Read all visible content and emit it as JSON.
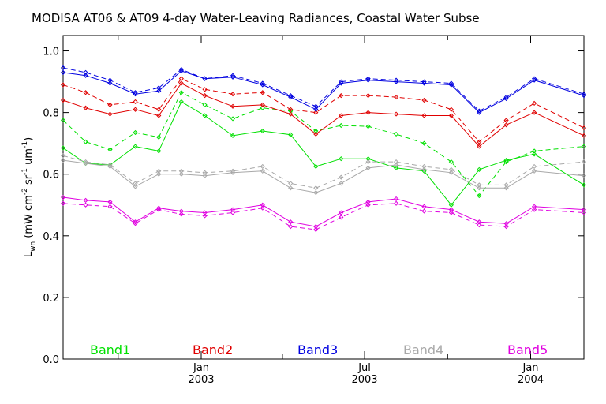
{
  "chart_data": {
    "type": "line",
    "title": "MODISA AT06 & AT09 4-day Water-Leaving Radiances, Coastal Water Subse",
    "ylabel": {
      "main": "L",
      "sub": "wn",
      "unit_open": " (mW cm",
      "sup1": "-2",
      "mid1": " sr",
      "sup2": "-1",
      "mid2": " um",
      "sup3": "-1",
      "close": ")"
    },
    "ylim": [
      0.0,
      1.05
    ],
    "yticks": [
      {
        "v": 0.0,
        "label": "0.0"
      },
      {
        "v": 0.2,
        "label": "0.2"
      },
      {
        "v": 0.4,
        "label": "0.4"
      },
      {
        "v": 0.6,
        "label": "0.6"
      },
      {
        "v": 0.8,
        "label": "0.8"
      },
      {
        "v": 1.0,
        "label": "1.0"
      }
    ],
    "xlim": [
      "2002-08-01",
      "2004-02-29"
    ],
    "xticks": [
      {
        "date": "2002-10-01",
        "major": false
      },
      {
        "date": "2003-01-01",
        "major": true,
        "label1": "Jan",
        "label2": "2003"
      },
      {
        "date": "2003-04-01",
        "major": false
      },
      {
        "date": "2003-07-01",
        "major": true,
        "label1": "Jul",
        "label2": "2003"
      },
      {
        "date": "2003-10-01",
        "major": false
      },
      {
        "date": "2004-01-01",
        "major": true,
        "label1": "Jan",
        "label2": "2004"
      }
    ],
    "x": [
      "2002-08-01",
      "2002-08-26",
      "2002-09-22",
      "2002-10-20",
      "2002-11-15",
      "2002-12-10",
      "2003-01-05",
      "2003-02-05",
      "2003-03-10",
      "2003-04-10",
      "2003-05-08",
      "2003-06-05",
      "2003-07-05",
      "2003-08-05",
      "2003-09-05",
      "2003-10-05",
      "2003-11-05",
      "2003-12-05",
      "2004-01-05",
      "2004-02-29"
    ],
    "series": [
      {
        "name": "Band1",
        "color": "#00e000",
        "at06": [
          0.685,
          0.635,
          0.63,
          0.69,
          0.675,
          0.835,
          0.79,
          0.725,
          0.74,
          0.728,
          0.625,
          0.65,
          0.65,
          0.62,
          0.61,
          0.5,
          0.615,
          0.645,
          0.665,
          0.565
        ],
        "at09": [
          0.775,
          0.705,
          0.68,
          0.735,
          0.72,
          0.865,
          0.825,
          0.78,
          0.815,
          0.805,
          0.74,
          0.758,
          0.755,
          0.73,
          0.7,
          0.64,
          0.53,
          0.64,
          0.675,
          0.69
        ]
      },
      {
        "name": "Band2",
        "color": "#e00000",
        "at06": [
          0.84,
          0.815,
          0.795,
          0.81,
          0.79,
          0.895,
          0.855,
          0.82,
          0.825,
          0.795,
          0.73,
          0.79,
          0.8,
          0.795,
          0.79,
          0.79,
          0.69,
          0.76,
          0.8,
          0.725
        ],
        "at09": [
          0.89,
          0.865,
          0.825,
          0.835,
          0.81,
          0.91,
          0.875,
          0.86,
          0.865,
          0.81,
          0.8,
          0.855,
          0.855,
          0.85,
          0.84,
          0.81,
          0.705,
          0.775,
          0.83,
          0.75
        ]
      },
      {
        "name": "Band3",
        "color": "#0000e0",
        "at06": [
          0.93,
          0.92,
          0.895,
          0.86,
          0.87,
          0.935,
          0.91,
          0.915,
          0.89,
          0.85,
          0.81,
          0.895,
          0.905,
          0.9,
          0.895,
          0.89,
          0.8,
          0.845,
          0.905,
          0.855
        ],
        "at09": [
          0.945,
          0.93,
          0.905,
          0.865,
          0.88,
          0.94,
          0.91,
          0.92,
          0.895,
          0.855,
          0.82,
          0.9,
          0.91,
          0.905,
          0.9,
          0.895,
          0.805,
          0.85,
          0.91,
          0.86
        ]
      },
      {
        "name": "Band4",
        "color": "#a8a8a8",
        "at06": [
          0.645,
          0.635,
          0.625,
          0.56,
          0.6,
          0.6,
          0.595,
          0.605,
          0.61,
          0.555,
          0.54,
          0.57,
          0.62,
          0.63,
          0.615,
          0.605,
          0.555,
          0.555,
          0.61,
          0.595
        ],
        "at09": [
          0.66,
          0.64,
          0.63,
          0.57,
          0.61,
          0.61,
          0.605,
          0.61,
          0.625,
          0.57,
          0.555,
          0.59,
          0.64,
          0.64,
          0.625,
          0.615,
          0.565,
          0.565,
          0.625,
          0.64
        ]
      },
      {
        "name": "Band5",
        "color": "#e000e0",
        "at06": [
          0.525,
          0.515,
          0.51,
          0.445,
          0.49,
          0.48,
          0.475,
          0.485,
          0.5,
          0.445,
          0.43,
          0.475,
          0.51,
          0.52,
          0.495,
          0.485,
          0.445,
          0.44,
          0.495,
          0.485
        ],
        "at09": [
          0.505,
          0.5,
          0.495,
          0.44,
          0.485,
          0.47,
          0.465,
          0.475,
          0.49,
          0.43,
          0.42,
          0.46,
          0.5,
          0.505,
          0.48,
          0.475,
          0.435,
          0.43,
          0.485,
          0.475
        ]
      }
    ]
  }
}
